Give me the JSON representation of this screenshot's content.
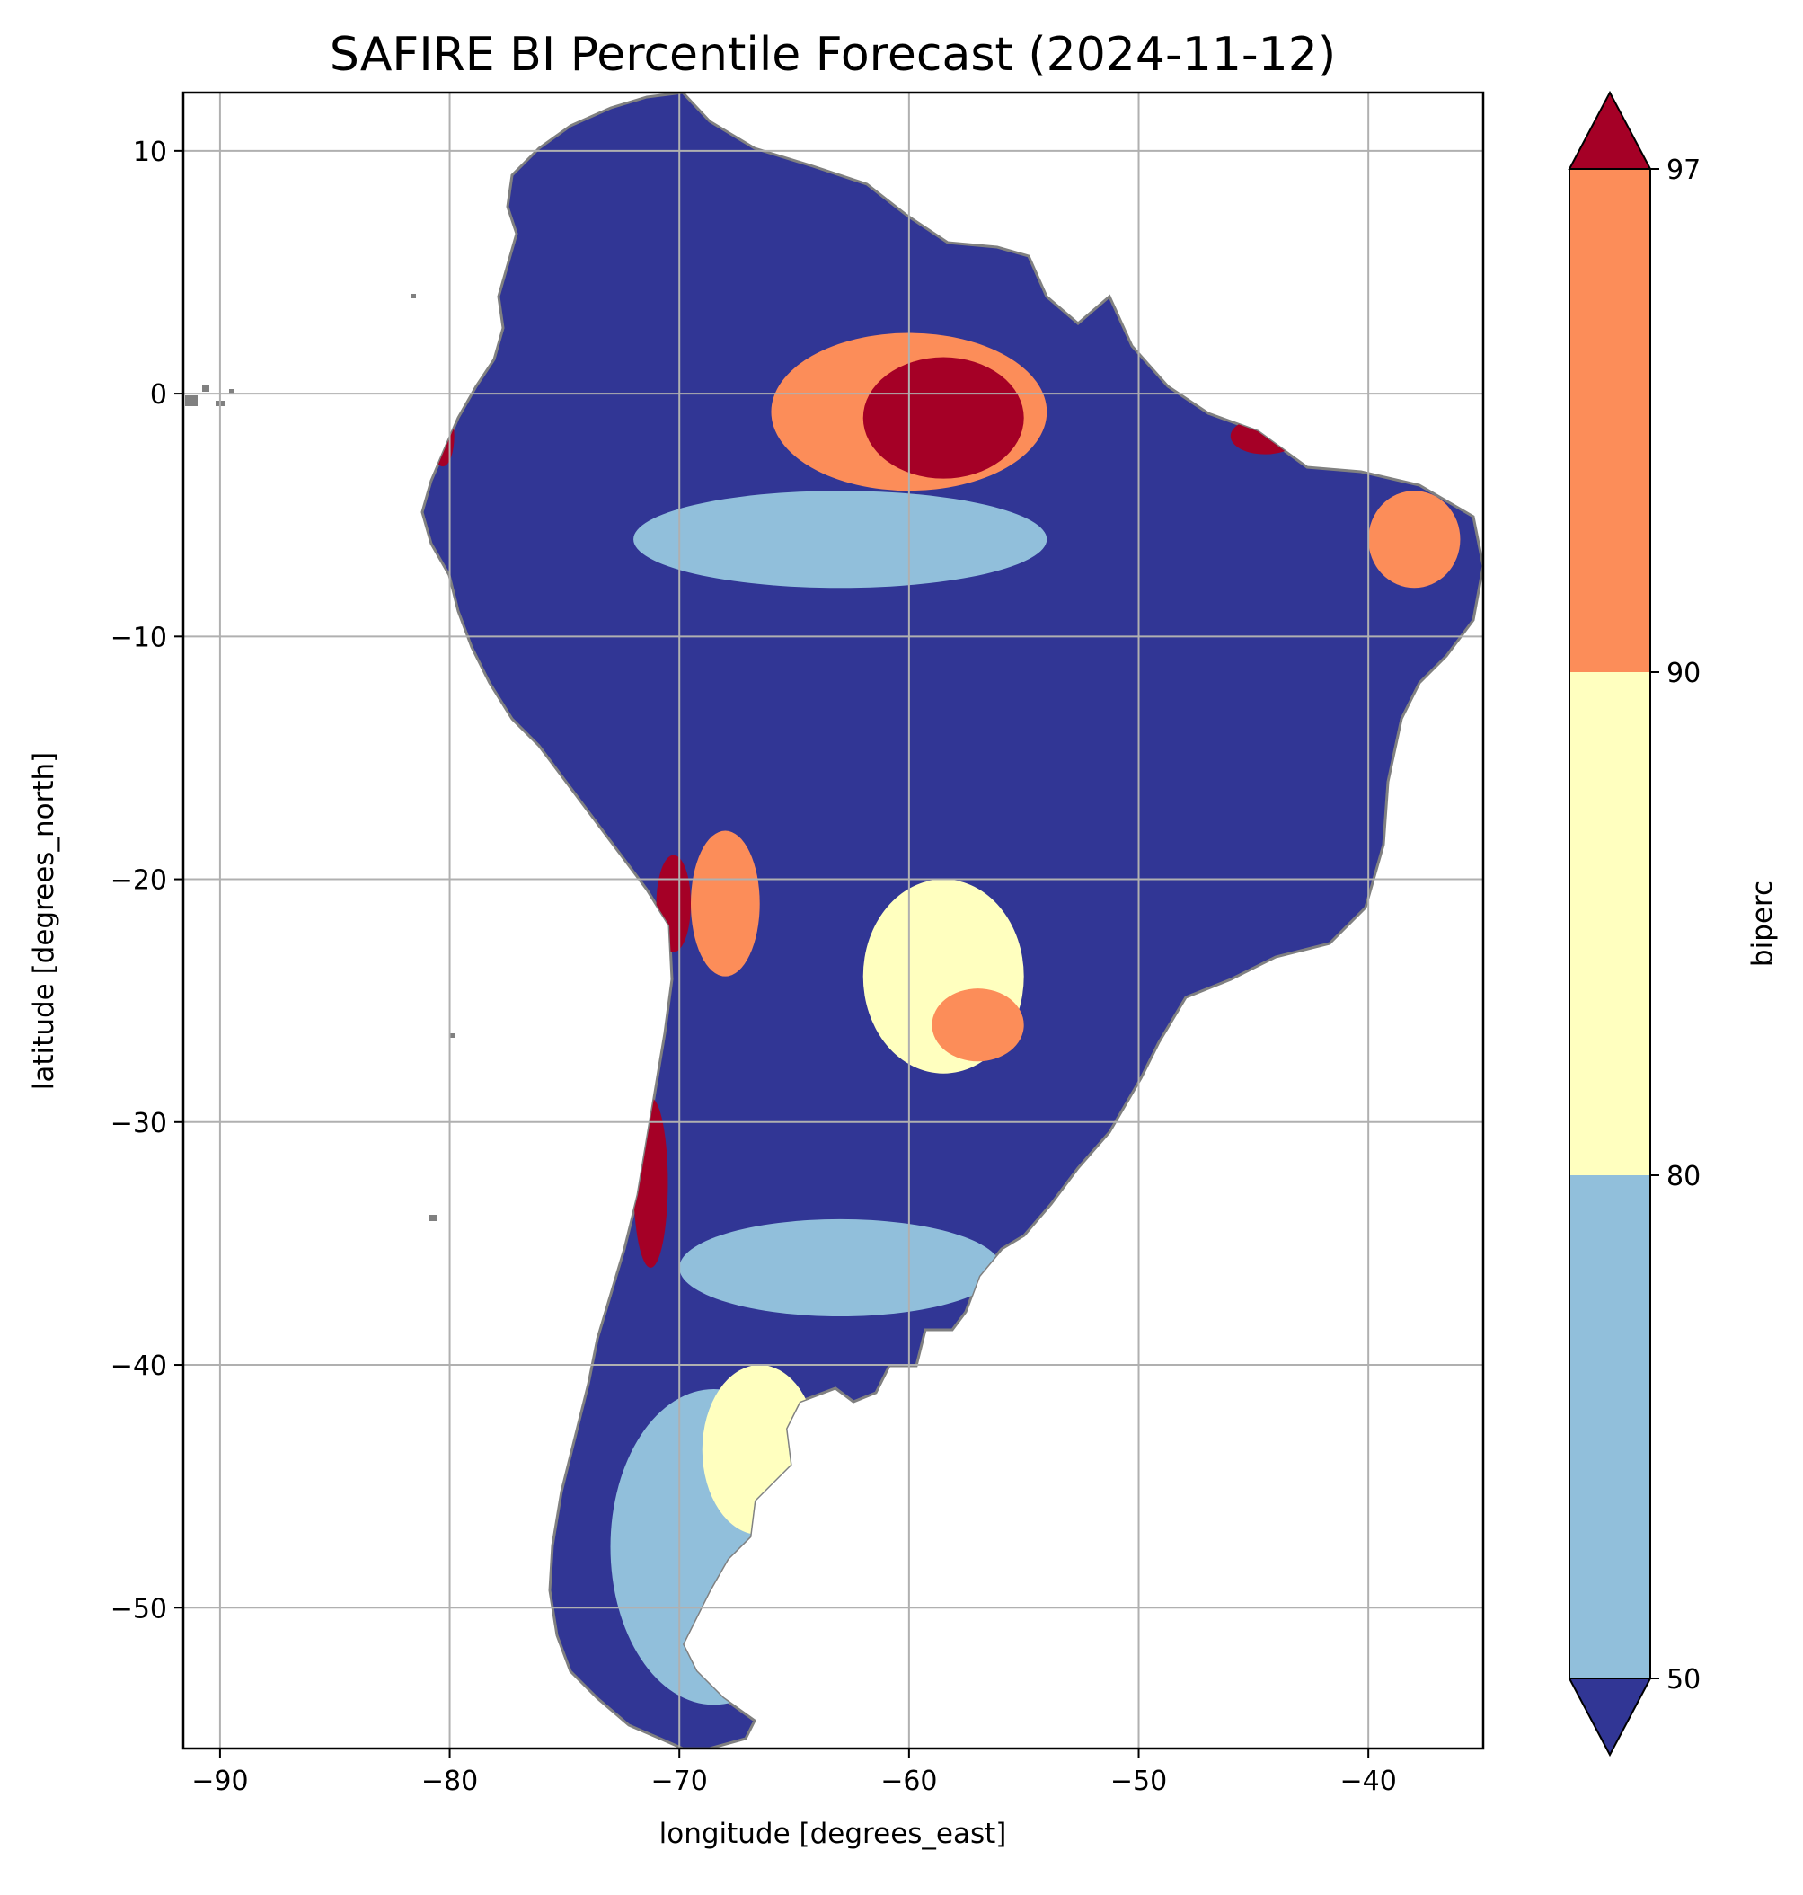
{
  "title": "SAFIRE BI Percentile Forecast (2024-11-12)",
  "xlabel": "longitude [degrees_east]",
  "ylabel": "latitude [degrees_north]",
  "colorbar": {
    "label": "biperc",
    "ticks": [
      "97",
      "90",
      "80",
      "50"
    ],
    "levels": [
      50,
      80,
      90,
      97
    ],
    "extend": "both",
    "colors": {
      "below_50": "#313695",
      "50_80": "#91bfdb",
      "80_90": "#ffffbf",
      "90_97": "#fc8d59",
      "above_97": "#a50026"
    }
  },
  "map": {
    "region": "South America",
    "coastline_color": "#808080",
    "gridlines": true,
    "grid_color": "#b0b0b0"
  },
  "chart_data": {
    "type": "heatmap",
    "title": "SAFIRE BI Percentile Forecast (2024-11-12)",
    "xlabel": "longitude [degrees_east]",
    "ylabel": "latitude [degrees_north]",
    "xlim": [
      -91.6,
      -35
    ],
    "ylim": [
      -55.8,
      12.4
    ],
    "xticks": [
      "−90",
      "−80",
      "−70",
      "−60",
      "−50",
      "−40"
    ],
    "xtick_values": [
      -90,
      -80,
      -70,
      -60,
      -50,
      -40
    ],
    "yticks": [
      "10",
      "0",
      "−10",
      "−20",
      "−30",
      "−40",
      "−50"
    ],
    "ytick_values": [
      10,
      0,
      -10,
      -20,
      -30,
      -40,
      -50
    ],
    "grid": true,
    "legend": "colorbar right",
    "regions": [
      {
        "class": "above_97",
        "lon": [
          -62,
          -55
        ],
        "lat": [
          -3.5,
          1.5
        ]
      },
      {
        "class": "90_97",
        "lon": [
          -66,
          -54
        ],
        "lat": [
          -4,
          2.5
        ]
      },
      {
        "class": "above_97",
        "lon": [
          -46,
          -43
        ],
        "lat": [
          -2.5,
          -1
        ]
      },
      {
        "class": "above_97",
        "lon": [
          -80.8,
          -79.8
        ],
        "lat": [
          -3,
          -0.5
        ]
      },
      {
        "class": "above_97",
        "lon": [
          -71,
          -69.5
        ],
        "lat": [
          -23,
          -19
        ]
      },
      {
        "class": "90_97",
        "lon": [
          -69.5,
          -66.5
        ],
        "lat": [
          -24,
          -18
        ]
      },
      {
        "class": "above_97",
        "lon": [
          -72,
          -70.5
        ],
        "lat": [
          -36,
          -29
        ]
      },
      {
        "class": "90_97",
        "lon": [
          -59,
          -55
        ],
        "lat": [
          -27.5,
          -24.5
        ]
      },
      {
        "class": "80_90",
        "lon": [
          -62,
          -55
        ],
        "lat": [
          -28,
          -20
        ]
      },
      {
        "class": "80_90",
        "lon": [
          -69,
          -64
        ],
        "lat": [
          -47,
          -40
        ]
      },
      {
        "class": "90_97",
        "lon": [
          -40,
          -36
        ],
        "lat": [
          -8,
          -4
        ]
      },
      {
        "class": "50_80",
        "lon": [
          -72,
          -54
        ],
        "lat": [
          -8,
          -4
        ]
      },
      {
        "class": "50_80",
        "lon": [
          -70,
          -56
        ],
        "lat": [
          -38,
          -34
        ]
      },
      {
        "class": "50_80",
        "lon": [
          -73,
          -64
        ],
        "lat": [
          -54,
          -41
        ]
      }
    ]
  }
}
